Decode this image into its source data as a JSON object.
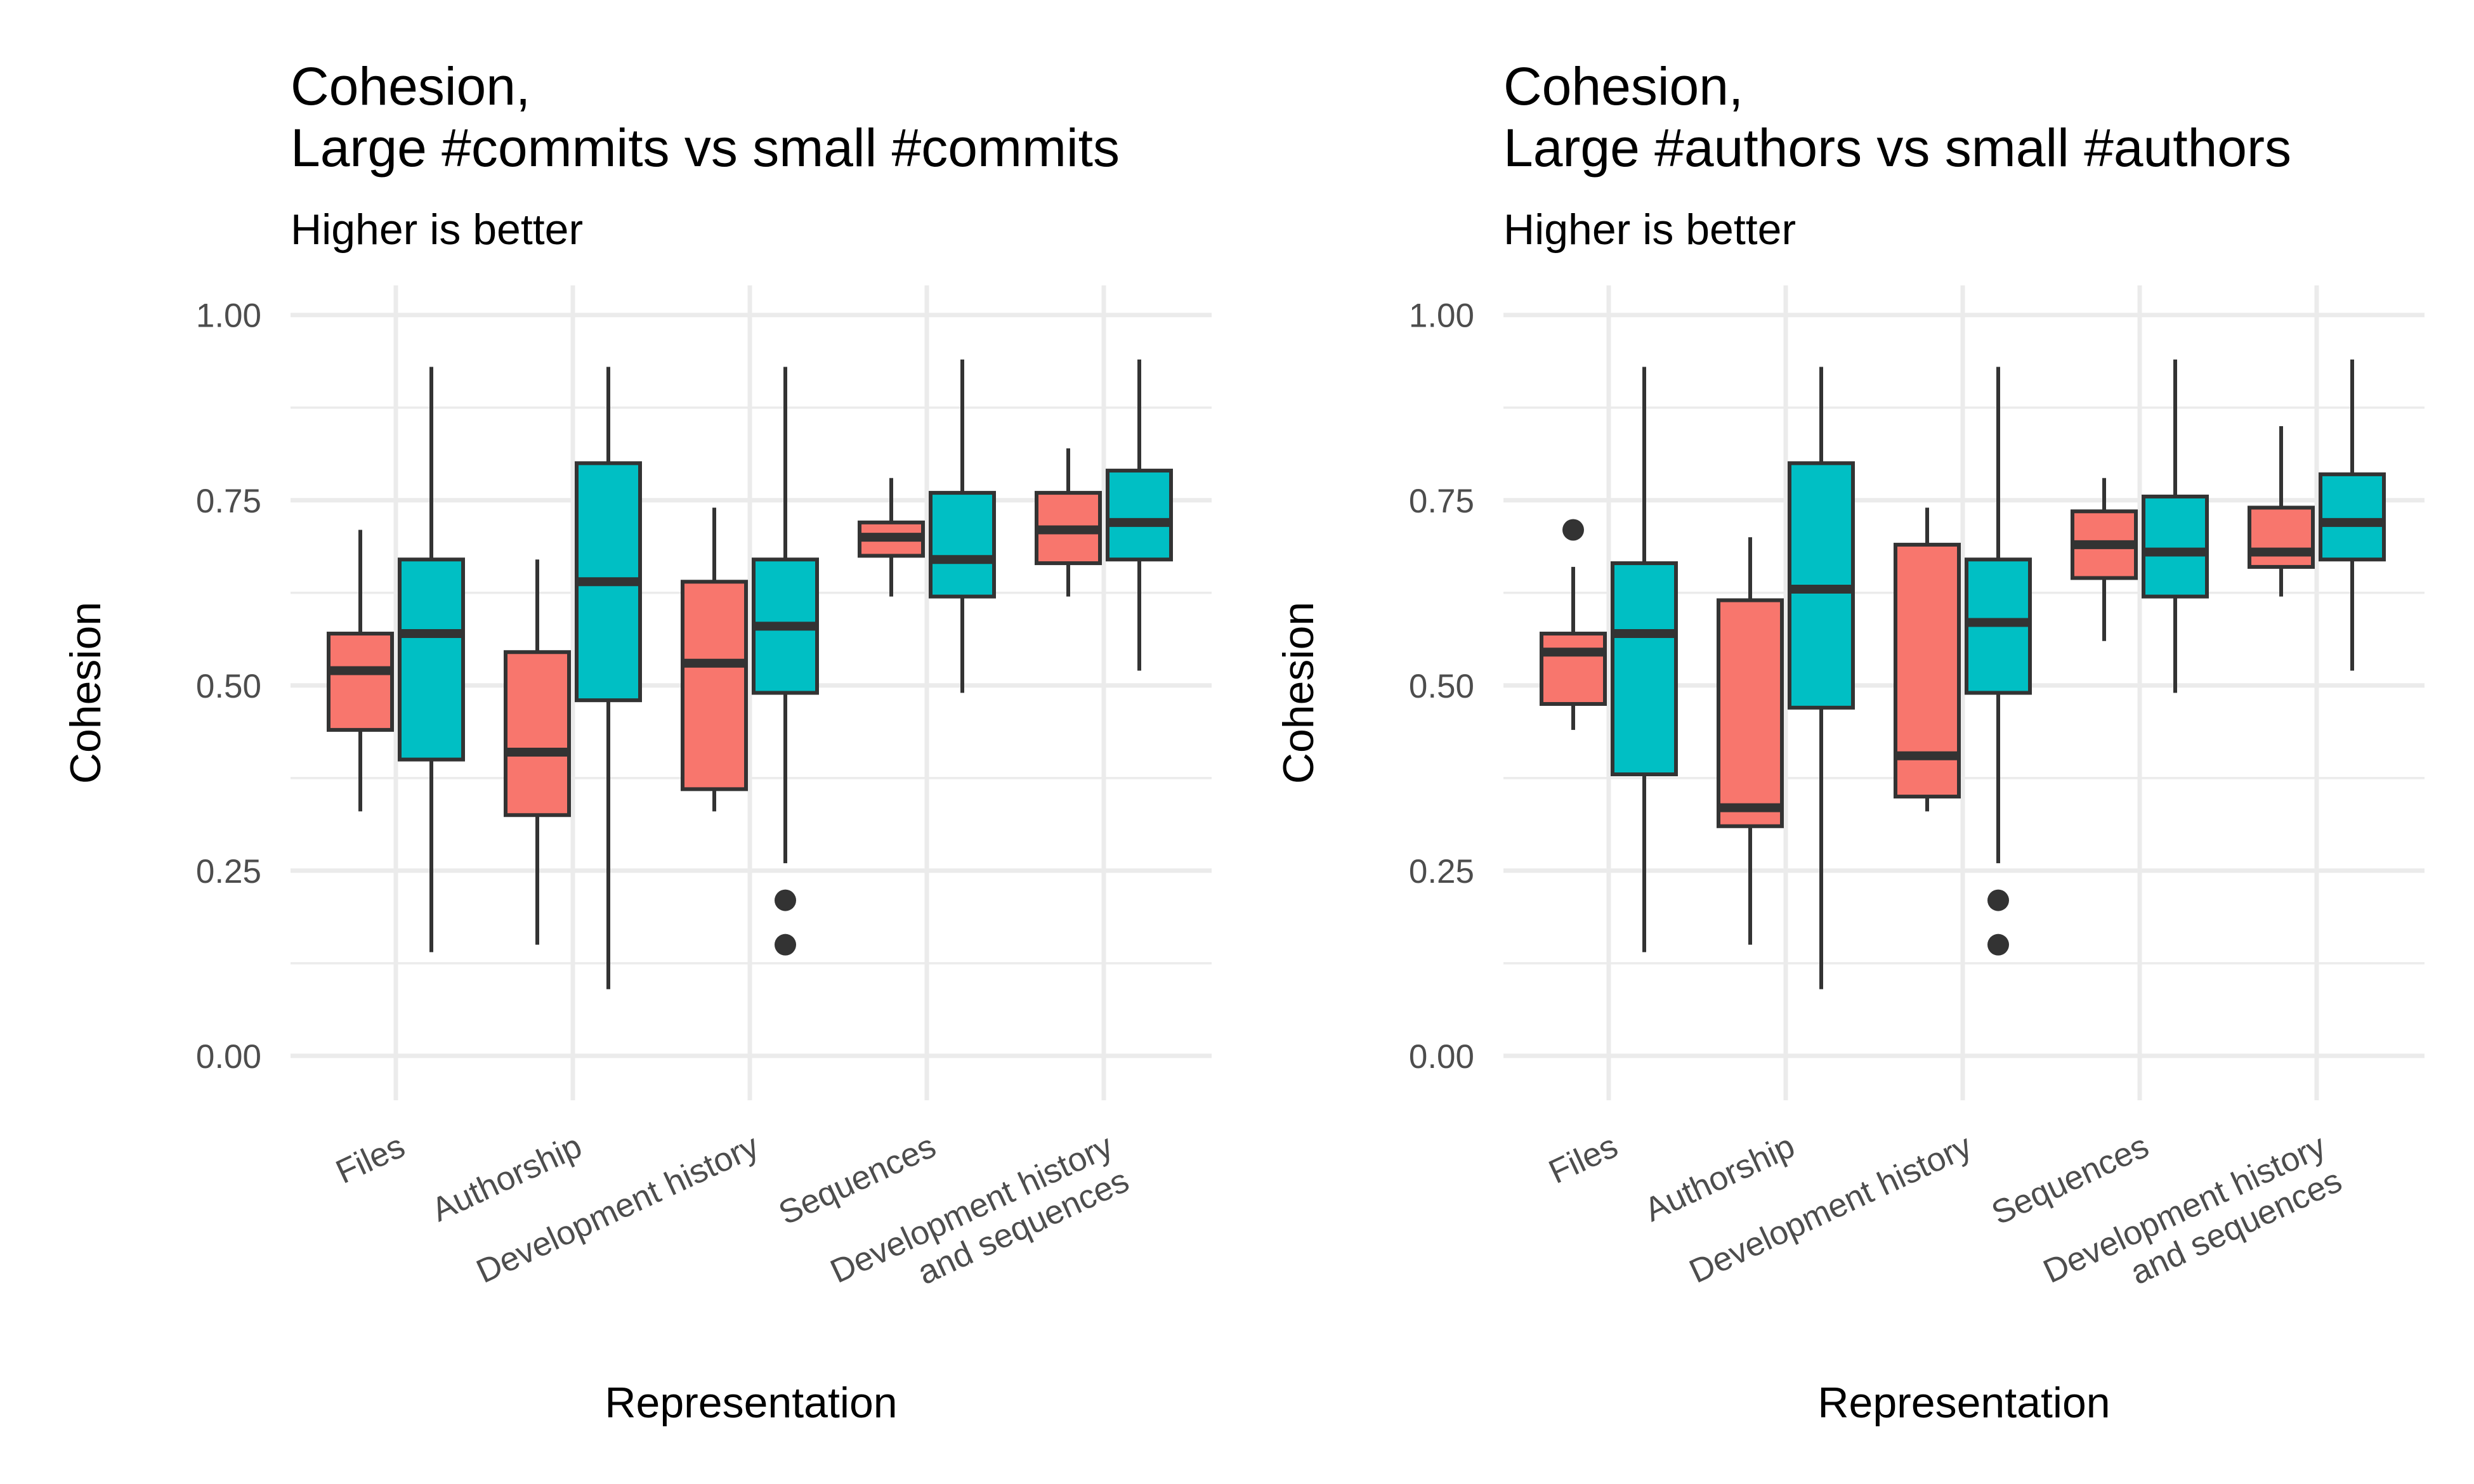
{
  "colors": {
    "group_a": "#F8766D",
    "group_b": "#00BFC4",
    "ink": "#333333",
    "grid": "#EBEBEB"
  },
  "chart_data": [
    {
      "type": "boxplot",
      "title_lines": [
        "Cohesion,",
        "Large #commits vs small #commits"
      ],
      "subtitle": "Higher is better",
      "xlabel": "Representation",
      "ylabel": "Cohesion",
      "ylim": [
        -0.06,
        1.04
      ],
      "yticks": [
        "0.00",
        "0.25",
        "0.50",
        "0.75",
        "1.00"
      ],
      "categories": [
        {
          "lines": [
            "Files"
          ]
        },
        {
          "lines": [
            "Authorship"
          ]
        },
        {
          "lines": [
            "Development history"
          ]
        },
        {
          "lines": [
            "Sequences"
          ]
        },
        {
          "lines": [
            "Development history",
            "and sequences"
          ]
        }
      ],
      "series": [
        {
          "name": "Large #commits",
          "color": "#F8766D",
          "boxes": [
            {
              "min": 0.33,
              "q1": 0.44,
              "median": 0.52,
              "q3": 0.57,
              "max": 0.71,
              "outliers": []
            },
            {
              "min": 0.15,
              "q1": 0.325,
              "median": 0.41,
              "q3": 0.545,
              "max": 0.67,
              "outliers": []
            },
            {
              "min": 0.33,
              "q1": 0.36,
              "median": 0.53,
              "q3": 0.64,
              "max": 0.74,
              "outliers": []
            },
            {
              "min": 0.62,
              "q1": 0.675,
              "median": 0.7,
              "q3": 0.72,
              "max": 0.78,
              "outliers": []
            },
            {
              "min": 0.62,
              "q1": 0.665,
              "median": 0.71,
              "q3": 0.76,
              "max": 0.82,
              "outliers": []
            }
          ]
        },
        {
          "name": "Small #commits",
          "color": "#00BFC4",
          "boxes": [
            {
              "min": 0.14,
              "q1": 0.4,
              "median": 0.57,
              "q3": 0.67,
              "max": 0.93,
              "outliers": []
            },
            {
              "min": 0.09,
              "q1": 0.48,
              "median": 0.64,
              "q3": 0.8,
              "max": 0.93,
              "outliers": []
            },
            {
              "min": 0.26,
              "q1": 0.49,
              "median": 0.58,
              "q3": 0.67,
              "max": 0.93,
              "outliers": [
                0.21,
                0.15
              ]
            },
            {
              "min": 0.49,
              "q1": 0.62,
              "median": 0.67,
              "q3": 0.76,
              "max": 0.94,
              "outliers": []
            },
            {
              "min": 0.52,
              "q1": 0.67,
              "median": 0.72,
              "q3": 0.79,
              "max": 0.94,
              "outliers": []
            }
          ]
        }
      ]
    },
    {
      "type": "boxplot",
      "title_lines": [
        "Cohesion,",
        "Large #authors vs small #authors"
      ],
      "subtitle": "Higher is better",
      "xlabel": "Representation",
      "ylabel": "Cohesion",
      "ylim": [
        -0.06,
        1.04
      ],
      "yticks": [
        "0.00",
        "0.25",
        "0.50",
        "0.75",
        "1.00"
      ],
      "categories": [
        {
          "lines": [
            "Files"
          ]
        },
        {
          "lines": [
            "Authorship"
          ]
        },
        {
          "lines": [
            "Development history"
          ]
        },
        {
          "lines": [
            "Sequences"
          ]
        },
        {
          "lines": [
            "Development history",
            "and sequences"
          ]
        }
      ],
      "series": [
        {
          "name": "Large #authors",
          "color": "#F8766D",
          "boxes": [
            {
              "min": 0.44,
              "q1": 0.475,
              "median": 0.545,
              "q3": 0.57,
              "max": 0.66,
              "outliers": [
                0.71
              ]
            },
            {
              "min": 0.15,
              "q1": 0.31,
              "median": 0.335,
              "q3": 0.615,
              "max": 0.7,
              "outliers": []
            },
            {
              "min": 0.33,
              "q1": 0.35,
              "median": 0.405,
              "q3": 0.69,
              "max": 0.74,
              "outliers": []
            },
            {
              "min": 0.56,
              "q1": 0.645,
              "median": 0.69,
              "q3": 0.735,
              "max": 0.78,
              "outliers": []
            },
            {
              "min": 0.62,
              "q1": 0.66,
              "median": 0.68,
              "q3": 0.74,
              "max": 0.85,
              "outliers": []
            }
          ]
        },
        {
          "name": "Small #authors",
          "color": "#00BFC4",
          "boxes": [
            {
              "min": 0.14,
              "q1": 0.38,
              "median": 0.57,
              "q3": 0.665,
              "max": 0.93,
              "outliers": []
            },
            {
              "min": 0.09,
              "q1": 0.47,
              "median": 0.63,
              "q3": 0.8,
              "max": 0.93,
              "outliers": []
            },
            {
              "min": 0.26,
              "q1": 0.49,
              "median": 0.585,
              "q3": 0.67,
              "max": 0.93,
              "outliers": [
                0.21,
                0.15
              ]
            },
            {
              "min": 0.49,
              "q1": 0.62,
              "median": 0.68,
              "q3": 0.755,
              "max": 0.94,
              "outliers": []
            },
            {
              "min": 0.52,
              "q1": 0.67,
              "median": 0.72,
              "q3": 0.785,
              "max": 0.94,
              "outliers": []
            }
          ]
        }
      ]
    }
  ]
}
